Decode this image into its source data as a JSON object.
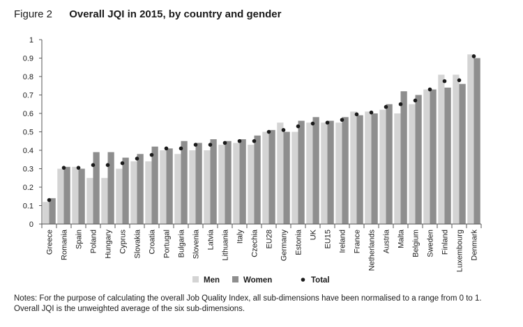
{
  "figure": {
    "number": "Figure 2",
    "title": "Overall JQI in 2015, by country and gender"
  },
  "chart_data": {
    "type": "bar",
    "ylim": [
      0,
      1
    ],
    "yticks": [
      "0",
      "0.1",
      "0.2",
      "0.3",
      "0.4",
      "0.5",
      "0.6",
      "0.7",
      "0.8",
      "0.9",
      "1"
    ],
    "categories": [
      "Greece",
      "Romania",
      "Spain",
      "Poland",
      "Hungary",
      "Cyprus",
      "Slovakia",
      "Croatia",
      "Portugal",
      "Bulgaria",
      "Slovenia",
      "Latvia",
      "Lithuania",
      "Italy",
      "Czechia",
      "EU28",
      "Germany",
      "Estonia",
      "UK",
      "EU15",
      "Ireland",
      "France",
      "Netherlands",
      "Austria",
      "Malta",
      "Belgium",
      "Sweden",
      "Finland",
      "Luxembourg",
      "Denmark"
    ],
    "series": [
      {
        "name": "Men",
        "kind": "bar",
        "color": "#d4d4d4",
        "values": [
          0.12,
          0.3,
          0.31,
          0.25,
          0.25,
          0.3,
          0.34,
          0.34,
          0.4,
          0.38,
          0.4,
          0.4,
          0.43,
          0.44,
          0.43,
          0.5,
          0.55,
          0.5,
          0.55,
          0.55,
          0.55,
          0.61,
          0.61,
          0.62,
          0.6,
          0.65,
          0.73,
          0.81,
          0.81,
          0.92
        ]
      },
      {
        "name": "Women",
        "kind": "bar",
        "color": "#8e8e8e",
        "values": [
          0.14,
          0.31,
          0.3,
          0.39,
          0.39,
          0.36,
          0.38,
          0.42,
          0.41,
          0.45,
          0.44,
          0.46,
          0.45,
          0.46,
          0.48,
          0.51,
          0.5,
          0.56,
          0.58,
          0.56,
          0.58,
          0.59,
          0.6,
          0.65,
          0.72,
          0.7,
          0.73,
          0.74,
          0.76,
          0.9
        ]
      },
      {
        "name": "Total",
        "kind": "dot",
        "color": "#1a1a1a",
        "values": [
          0.13,
          0.305,
          0.305,
          0.32,
          0.32,
          0.33,
          0.355,
          0.375,
          0.41,
          0.41,
          0.43,
          0.43,
          0.44,
          0.45,
          0.45,
          0.5,
          0.51,
          0.53,
          0.545,
          0.55,
          0.565,
          0.595,
          0.605,
          0.635,
          0.65,
          0.67,
          0.73,
          0.775,
          0.78,
          0.91
        ]
      }
    ]
  },
  "notes": {
    "line1": "Notes: For the purpose of calculating the overall Job Quality Index, all sub-dimensions have been normalised to a range from 0 to 1.",
    "line2": "Overall JQI is the unweighted average of the six sub-dimensions."
  }
}
